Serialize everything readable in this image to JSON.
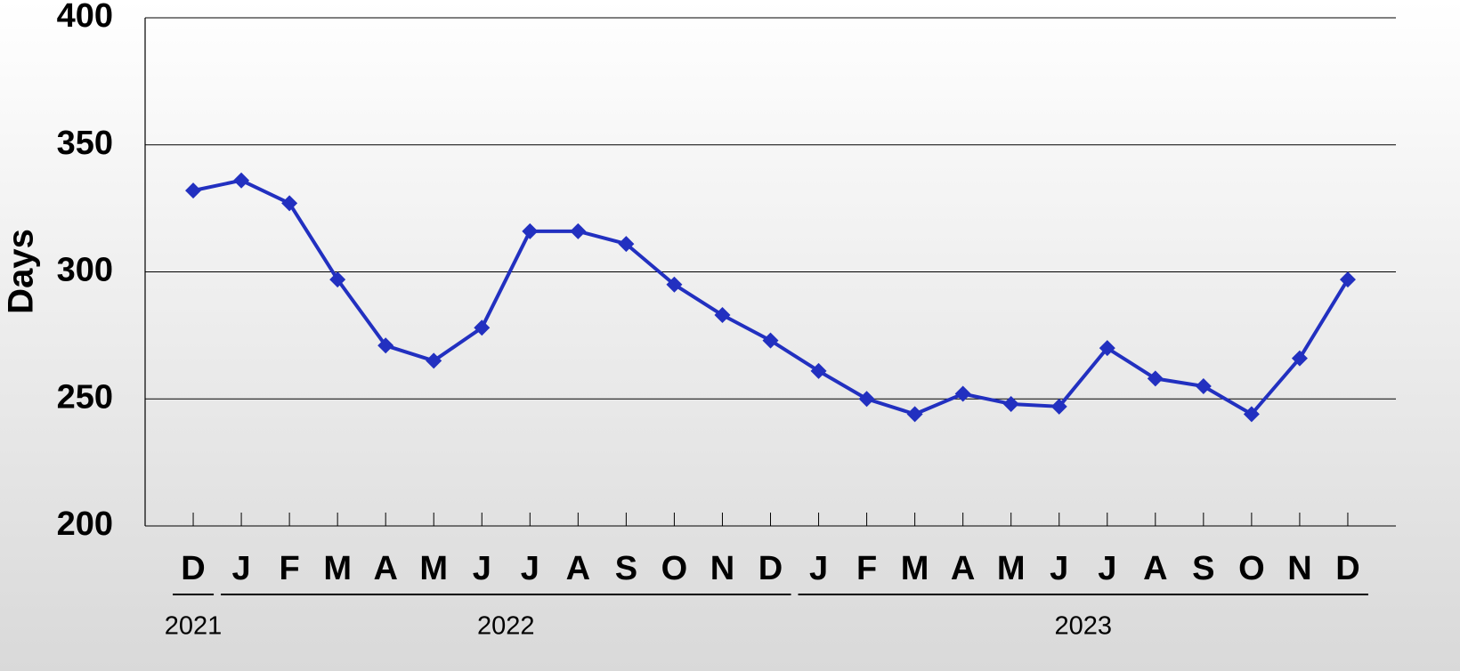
{
  "chart_data": {
    "type": "line",
    "y_label": "Days",
    "categories": [
      "D",
      "J",
      "F",
      "M",
      "A",
      "M",
      "J",
      "J",
      "A",
      "S",
      "O",
      "N",
      "D",
      "J",
      "F",
      "M",
      "A",
      "M",
      "J",
      "J",
      "A",
      "S",
      "O",
      "N",
      "D"
    ],
    "category_groups": [
      "2021",
      "2022",
      "2023"
    ],
    "series": [
      {
        "name": "Days",
        "color": "#2230c0",
        "values": [
          332,
          336,
          327,
          297,
          271,
          265,
          278,
          316,
          316,
          311,
          295,
          283,
          273,
          261,
          250,
          244,
          252,
          248,
          247,
          270,
          258,
          255,
          244,
          266,
          297
        ]
      }
    ],
    "ylim": [
      200,
      400
    ],
    "yticks": [
      200,
      250,
      300,
      350,
      400
    ],
    "grid": true
  }
}
